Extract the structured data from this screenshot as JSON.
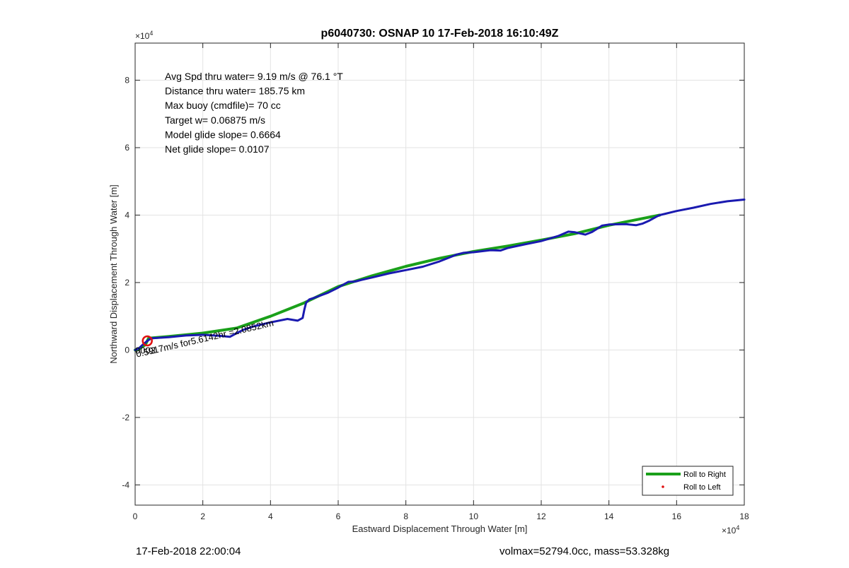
{
  "chart_data": {
    "type": "line",
    "title": "p6040730: OSNAP 10 17-Feb-2018 16:10:49Z",
    "xlabel": "Eastward Displacement Through Water [m]",
    "ylabel": "Northward Displacement Through Water [m]",
    "xlim": [
      0,
      180000
    ],
    "ylim": [
      -46000,
      91000
    ],
    "x_ticks": [
      0,
      20000,
      40000,
      60000,
      80000,
      100000,
      120000,
      140000,
      160000,
      180000
    ],
    "x_tick_labels": [
      "0",
      "2",
      "4",
      "6",
      "8",
      "10",
      "12",
      "14",
      "16",
      "18"
    ],
    "y_ticks": [
      -40000,
      -20000,
      0,
      20000,
      40000,
      60000,
      80000
    ],
    "y_tick_labels": [
      "-4",
      "-2",
      "0",
      "2",
      "4",
      "6",
      "8"
    ],
    "x_exponent": "×10",
    "x_exponent_power": "4",
    "y_exponent": "×10",
    "y_exponent_power": "4",
    "grid": true,
    "legend_position": "bottom-right",
    "info_lines": [
      "Avg Spd thru water=  9.19 m/s @  76.1 °T",
      "Distance thru water= 185.75 km",
      "Max buoy (cmdfile)= 70 cc",
      "Target w= 0.06875 m/s",
      "Model glide slope= 0.6664",
      "Net glide slope= 0.0107"
    ],
    "annotation": {
      "text": "0.5917m/s for5.6142hr =2.0852km",
      "x": 500,
      "y": -500,
      "angle_deg": -13
    },
    "start_label": "0003",
    "series": [
      {
        "name": "Roll to Right",
        "color": "#1aa01a",
        "width": 4,
        "style": "line",
        "x": [
          0,
          1000,
          3000,
          4000,
          10000,
          20000,
          30000,
          40000,
          50000,
          60000,
          70000,
          80000,
          90000,
          100000,
          110000,
          120000,
          130000,
          140000,
          150000,
          155000
        ],
        "y": [
          0,
          300,
          1500,
          3500,
          4000,
          5000,
          6500,
          10000,
          14000,
          18800,
          22000,
          24800,
          27200,
          29200,
          30800,
          32600,
          34500,
          37000,
          39000,
          40000
        ]
      },
      {
        "name": "",
        "color": "#1a1ab0",
        "width": 3,
        "style": "line",
        "x": [
          0,
          1000,
          2500,
          4000,
          5000,
          10000,
          15000,
          20000,
          25000,
          28000,
          30000,
          32000,
          35000,
          40000,
          45000,
          48000,
          49500,
          50000,
          50500,
          51500,
          53000,
          57000,
          60000,
          63000,
          65000,
          67000,
          70000,
          75000,
          80000,
          85000,
          90000,
          95000,
          97000,
          100000,
          105000,
          108000,
          110000,
          115000,
          120000,
          125000,
          128000,
          130000,
          133000,
          135000,
          138000,
          140000,
          145000,
          148000,
          150000,
          152000,
          154000,
          155000,
          160000,
          165000,
          170000,
          175000,
          180000
        ],
        "y": [
          0,
          400,
          1800,
          3000,
          3500,
          3800,
          4300,
          4500,
          4200,
          3900,
          5000,
          6000,
          7000,
          8200,
          9200,
          8700,
          9500,
          12000,
          14000,
          15000,
          15500,
          17000,
          18500,
          20200,
          20300,
          20800,
          21500,
          22700,
          23700,
          24700,
          26300,
          28300,
          28800,
          29000,
          29600,
          29500,
          30200,
          31300,
          32300,
          33800,
          35100,
          34900,
          34200,
          35000,
          36900,
          37200,
          37300,
          37000,
          37500,
          38400,
          39500,
          40000,
          41200,
          42200,
          43300,
          44100,
          44600
        ]
      },
      {
        "name": "Roll to Left",
        "color": "#e01010",
        "style": "marker",
        "x": [],
        "y": []
      }
    ],
    "marker_circle": {
      "x": 3600,
      "y": 2700,
      "color": "#e01010"
    }
  },
  "footer": {
    "left": "17-Feb-2018 22:00:04",
    "right": "volmax=52794.0cc, mass=53.328kg"
  }
}
